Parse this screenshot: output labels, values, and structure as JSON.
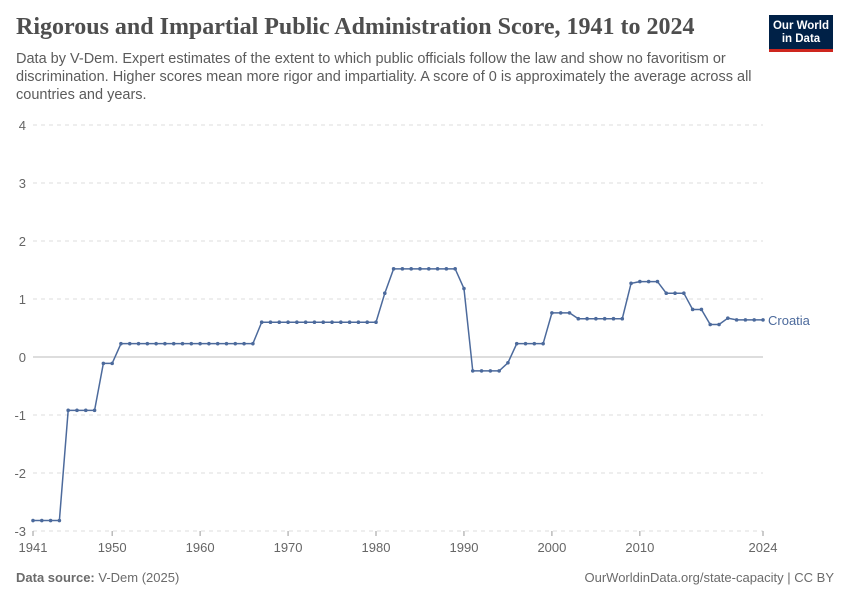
{
  "title": "Rigorous and Impartial Public Administration Score, 1941 to 2024",
  "subtitle": "Data by V-Dem. Expert estimates of the extent to which public officials follow the law and show no favoritism or discrimination. Higher scores mean more rigor and impartiality. A score of 0 is approximately the average across all countries and years.",
  "logo": "Our World in Data",
  "footer": {
    "source_label": "Data source:",
    "source": "V-Dem (2025)",
    "right": "OurWorldinData.org/state-capacity | CC BY"
  },
  "chart_data": {
    "type": "line",
    "title": "Rigorous and Impartial Public Administration Score, 1941 to 2024",
    "xlim": [
      1941,
      2024
    ],
    "ylim": [
      -3,
      4
    ],
    "x_ticks": [
      "1941",
      "1950",
      "1960",
      "1970",
      "1980",
      "1990",
      "2000",
      "2010",
      "2024"
    ],
    "y_ticks": [
      "4",
      "3",
      "2",
      "1",
      "0",
      "-1",
      "-2",
      "-3"
    ],
    "grid": "horizontal dashed",
    "colors": {
      "line": "#4c6a9c"
    },
    "series": [
      {
        "name": "Croatia",
        "x": [
          1941,
          1942,
          1943,
          1944,
          1945,
          1946,
          1947,
          1948,
          1949,
          1950,
          1951,
          1952,
          1953,
          1954,
          1955,
          1956,
          1957,
          1958,
          1959,
          1960,
          1961,
          1962,
          1963,
          1964,
          1965,
          1966,
          1967,
          1968,
          1969,
          1970,
          1971,
          1972,
          1973,
          1974,
          1975,
          1976,
          1977,
          1978,
          1979,
          1980,
          1981,
          1982,
          1983,
          1984,
          1985,
          1986,
          1987,
          1988,
          1989,
          1990,
          1991,
          1992,
          1993,
          1994,
          1995,
          1996,
          1997,
          1998,
          1999,
          2000,
          2001,
          2002,
          2003,
          2004,
          2005,
          2006,
          2007,
          2008,
          2009,
          2010,
          2011,
          2012,
          2013,
          2014,
          2015,
          2016,
          2017,
          2018,
          2019,
          2020,
          2021,
          2022,
          2023,
          2024
        ],
        "values": [
          -2.82,
          -2.82,
          -2.82,
          -2.82,
          -0.92,
          -0.92,
          -0.92,
          -0.92,
          -0.11,
          -0.11,
          0.23,
          0.23,
          0.23,
          0.23,
          0.23,
          0.23,
          0.23,
          0.23,
          0.23,
          0.23,
          0.23,
          0.23,
          0.23,
          0.23,
          0.23,
          0.23,
          0.6,
          0.6,
          0.6,
          0.6,
          0.6,
          0.6,
          0.6,
          0.6,
          0.6,
          0.6,
          0.6,
          0.6,
          0.6,
          0.6,
          1.1,
          1.52,
          1.52,
          1.52,
          1.52,
          1.52,
          1.52,
          1.52,
          1.52,
          1.18,
          -0.24,
          -0.24,
          -0.24,
          -0.24,
          -0.1,
          0.23,
          0.23,
          0.23,
          0.23,
          0.76,
          0.76,
          0.76,
          0.66,
          0.66,
          0.66,
          0.66,
          0.66,
          0.66,
          1.27,
          1.3,
          1.3,
          1.3,
          1.1,
          1.1,
          1.1,
          0.82,
          0.82,
          0.56,
          0.56,
          0.67,
          0.64,
          0.64,
          0.64,
          0.64
        ]
      }
    ]
  }
}
